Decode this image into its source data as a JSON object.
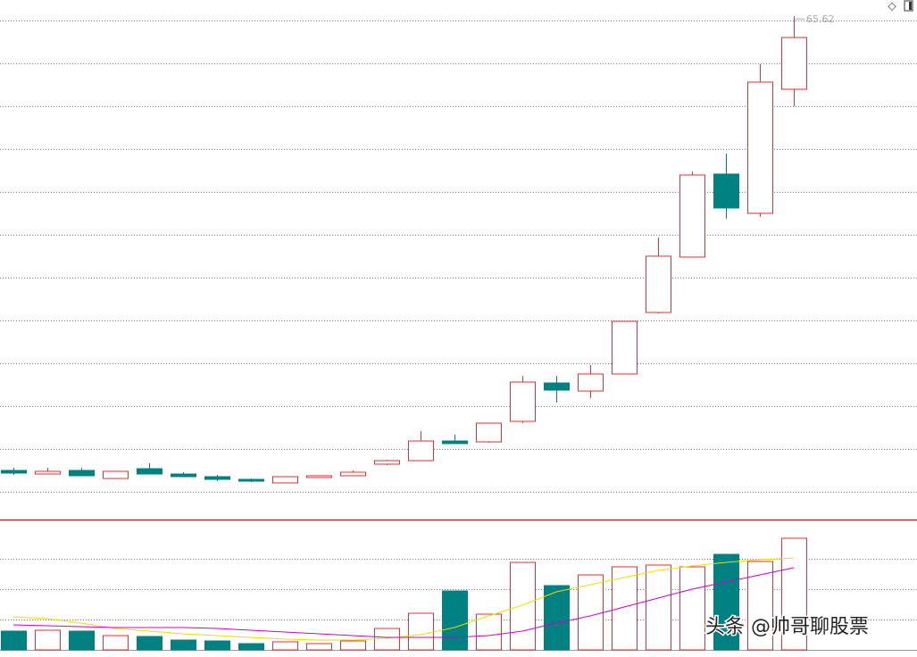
{
  "chart_data": [
    {
      "type": "candlestick",
      "up_color": "#e03030",
      "down_color": "#008080",
      "open": [
        10.36,
        9.92,
        10.36,
        9.38,
        10.57,
        9.92,
        9.6,
        9.27,
        8.84,
        9.49,
        9.71,
        11.12,
        11.55,
        13.94,
        13.83,
        16.33,
        21.0,
        20.02,
        22.09,
        29.58,
        36.32,
        46.42,
        41.64,
        56.74
      ],
      "close": [
        10.03,
        10.25,
        9.71,
        10.25,
        9.92,
        9.6,
        9.27,
        9.05,
        9.6,
        9.71,
        10.14,
        11.55,
        13.94,
        13.62,
        16.11,
        21.11,
        20.13,
        22.09,
        28.5,
        36.43,
        46.31,
        42.29,
        57.61,
        63.04
      ],
      "high": [
        10.68,
        10.68,
        10.68,
        10.25,
        11.23,
        10.14,
        9.81,
        9.38,
        9.6,
        9.71,
        10.36,
        11.66,
        15.14,
        14.7,
        16.11,
        21.87,
        21.87,
        23.17,
        28.5,
        38.71,
        46.75,
        48.92,
        59.78,
        65.62
      ],
      "low": [
        9.81,
        9.92,
        9.71,
        9.38,
        9.92,
        9.6,
        9.05,
        8.94,
        8.84,
        9.49,
        9.71,
        11.01,
        11.55,
        13.62,
        13.73,
        16.11,
        18.61,
        19.16,
        22.09,
        29.47,
        36.32,
        40.99,
        41.21,
        54.67
      ],
      "ylim": [
        4.6,
        67.6
      ],
      "high_label": "65.62",
      "grid": true
    },
    {
      "type": "bar",
      "values": [
        21,
        22,
        21,
        16,
        15,
        11,
        10,
        7,
        9,
        7,
        10,
        24,
        41,
        66,
        40,
        98,
        72,
        84,
        93,
        95,
        93,
        107,
        99,
        125
      ],
      "lines": [
        {
          "color": "#e8e000",
          "values": [
            37,
            35,
            30,
            24,
            21,
            18,
            16,
            14,
            12,
            11,
            11,
            13,
            17,
            25,
            38,
            50,
            65,
            73,
            81,
            89,
            94,
            98,
            101,
            103
          ]
        },
        {
          "color": "#cc00cc",
          "values": [
            28,
            27,
            26,
            25,
            25,
            25,
            24,
            22,
            20,
            18,
            16,
            14,
            14,
            14,
            16,
            21,
            30,
            38,
            48,
            58,
            68,
            76,
            84,
            92
          ]
        }
      ],
      "ylim": [
        0,
        145
      ],
      "grid": true
    }
  ],
  "watermark": "头条 @帅哥聊股票"
}
